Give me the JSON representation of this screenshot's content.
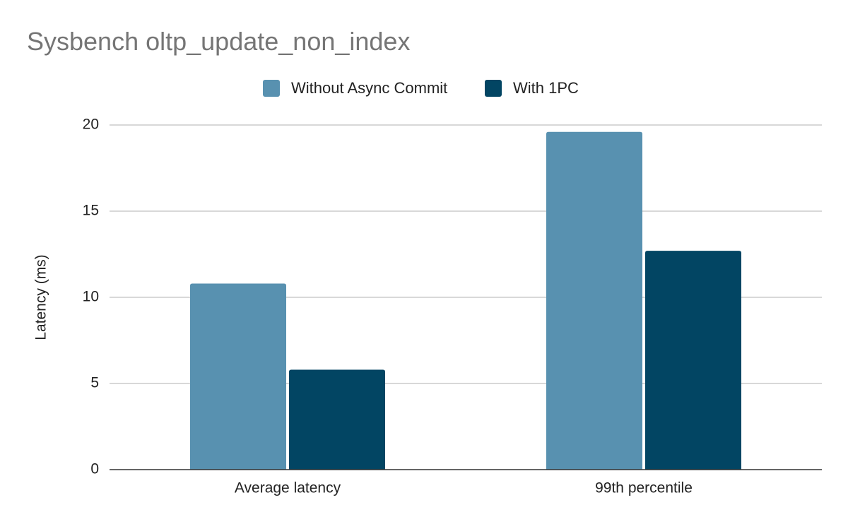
{
  "chart_data": {
    "type": "bar",
    "title": "Sysbench oltp_update_non_index",
    "ylabel": "Latency (ms)",
    "xlabel": "",
    "categories": [
      "Average latency",
      "99th percentile"
    ],
    "series": [
      {
        "name": "Without Async Commit",
        "values": [
          10.8,
          19.6
        ],
        "color": "#5891b0"
      },
      {
        "name": "With 1PC",
        "values": [
          5.8,
          12.7
        ],
        "color": "#024563"
      }
    ],
    "ylim": [
      0,
      20
    ],
    "yticks": [
      "0",
      "5",
      "10",
      "15",
      "20"
    ],
    "grid": true,
    "legend_position": "top"
  }
}
